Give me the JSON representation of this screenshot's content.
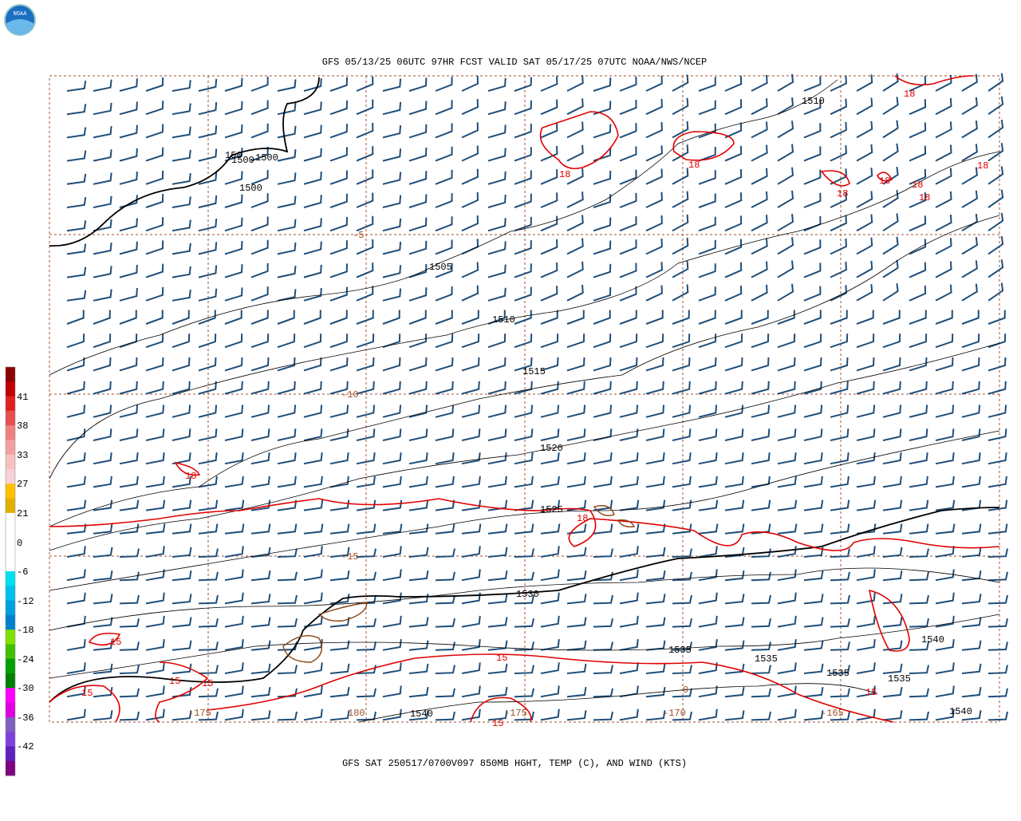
{
  "logo": "NOAA",
  "header": {
    "title": "GFS 05/13/25 06UTC 97HR FCST VALID SAT 05/17/25 07UTC NOAA/NWS/NCEP"
  },
  "footer": {
    "caption": "GFS SAT 250517/0700V097 850MB HGHT, TEMP (C), AND WIND (KTS)"
  },
  "color_scale": {
    "labels": [
      "41",
      "38",
      "33",
      "27",
      "21",
      "0",
      "-6",
      "-12",
      "-18",
      "-24",
      "-30",
      "-36",
      "-42"
    ]
  },
  "height_labels": [
    "1510",
    "150",
    "1500",
    "1500",
    "1500",
    "1505",
    "1510",
    "1515",
    "1520",
    "1525",
    "1530",
    "1535",
    "1535",
    "1535",
    "1535",
    "1540",
    "1540",
    "1540"
  ],
  "temp_labels": [
    "18",
    "18",
    "18",
    "18",
    "18",
    "18",
    "18",
    "18",
    "18",
    "15",
    "15",
    "15",
    "15",
    "15",
    "15",
    "15",
    "18"
  ],
  "grid_labels": [
    "-5",
    "-10",
    "-15",
    "-175",
    "180",
    "-175",
    "-170",
    "-165",
    "0"
  ]
}
